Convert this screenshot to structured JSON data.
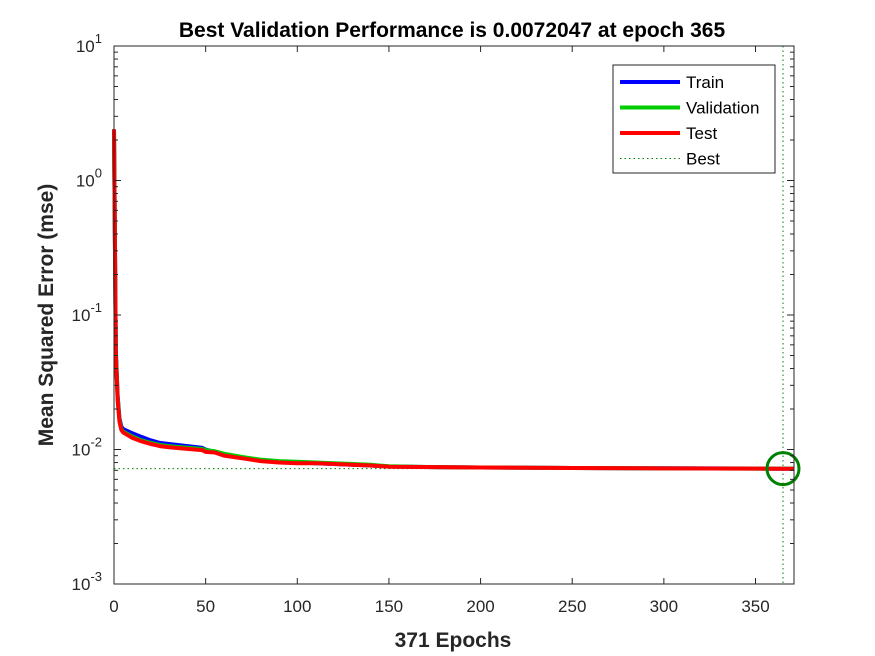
{
  "chart_data": {
    "type": "line",
    "title": "Best Validation Performance is 0.0072047 at epoch 365",
    "xlabel": "371 Epochs",
    "ylabel": "Mean Squared Error  (mse)",
    "xlim": [
      0,
      371
    ],
    "ylim": [
      0.001,
      10
    ],
    "yscale": "log",
    "grid": false,
    "legend_position": "top-right",
    "x_ticks": [
      0,
      50,
      100,
      150,
      200,
      250,
      300,
      350
    ],
    "y_ticks": [
      {
        "value": 0.001,
        "base": "10",
        "exp": "-3"
      },
      {
        "value": 0.01,
        "base": "10",
        "exp": "-2"
      },
      {
        "value": 0.1,
        "base": "10",
        "exp": "-1"
      },
      {
        "value": 1,
        "base": "10",
        "exp": "0"
      },
      {
        "value": 10,
        "base": "10",
        "exp": "1"
      }
    ],
    "series": [
      {
        "name": "Train",
        "color": "#0000ff",
        "x": [
          0,
          1,
          2,
          3,
          4,
          5,
          10,
          15,
          20,
          25,
          30,
          40,
          48,
          50,
          60,
          70,
          80,
          90,
          100,
          110,
          120,
          130,
          140,
          150,
          175,
          200,
          250,
          300,
          350,
          365,
          371
        ],
        "y": [
          2.4,
          0.055,
          0.025,
          0.017,
          0.0148,
          0.0142,
          0.0132,
          0.0124,
          0.0117,
          0.0112,
          0.011,
          0.0106,
          0.0103,
          0.01,
          0.0092,
          0.0087,
          0.0083,
          0.0081,
          0.008,
          0.0079,
          0.0078,
          0.0077,
          0.0076,
          0.00748,
          0.0074,
          0.00735,
          0.00728,
          0.00725,
          0.00722,
          0.0072,
          0.0072
        ]
      },
      {
        "name": "Validation",
        "color": "#00cc00",
        "x": [
          0,
          1,
          2,
          3,
          4,
          5,
          10,
          15,
          20,
          25,
          30,
          40,
          48,
          50,
          55,
          60,
          70,
          80,
          90,
          100,
          110,
          120,
          130,
          140,
          150,
          175,
          200,
          250,
          300,
          350,
          365,
          371
        ],
        "y": [
          2.4,
          0.052,
          0.024,
          0.0165,
          0.0142,
          0.0136,
          0.0125,
          0.0117,
          0.0112,
          0.0108,
          0.0106,
          0.0103,
          0.0101,
          0.0099,
          0.0097,
          0.0093,
          0.0088,
          0.0084,
          0.0082,
          0.0081,
          0.008,
          0.0079,
          0.0078,
          0.0077,
          0.0075,
          0.0074,
          0.00735,
          0.00728,
          0.00724,
          0.00721,
          0.0072047,
          0.00721
        ]
      },
      {
        "name": "Test",
        "color": "#ff0000",
        "x": [
          0,
          1,
          2,
          3,
          4,
          5,
          10,
          15,
          20,
          25,
          30,
          40,
          48,
          50,
          55,
          60,
          70,
          80,
          90,
          100,
          110,
          120,
          130,
          140,
          150,
          175,
          200,
          250,
          300,
          350,
          365,
          371
        ],
        "y": [
          2.4,
          0.05,
          0.023,
          0.016,
          0.014,
          0.0134,
          0.0122,
          0.0115,
          0.011,
          0.0106,
          0.0104,
          0.0101,
          0.0099,
          0.0096,
          0.0095,
          0.009,
          0.0086,
          0.0082,
          0.008,
          0.0079,
          0.0079,
          0.0078,
          0.0077,
          0.0076,
          0.00745,
          0.0074,
          0.00735,
          0.00728,
          0.00724,
          0.00721,
          0.0072,
          0.0072
        ]
      }
    ],
    "best": {
      "name": "Best",
      "epoch": 365,
      "value": 0.0072047,
      "color": "#008000"
    }
  }
}
